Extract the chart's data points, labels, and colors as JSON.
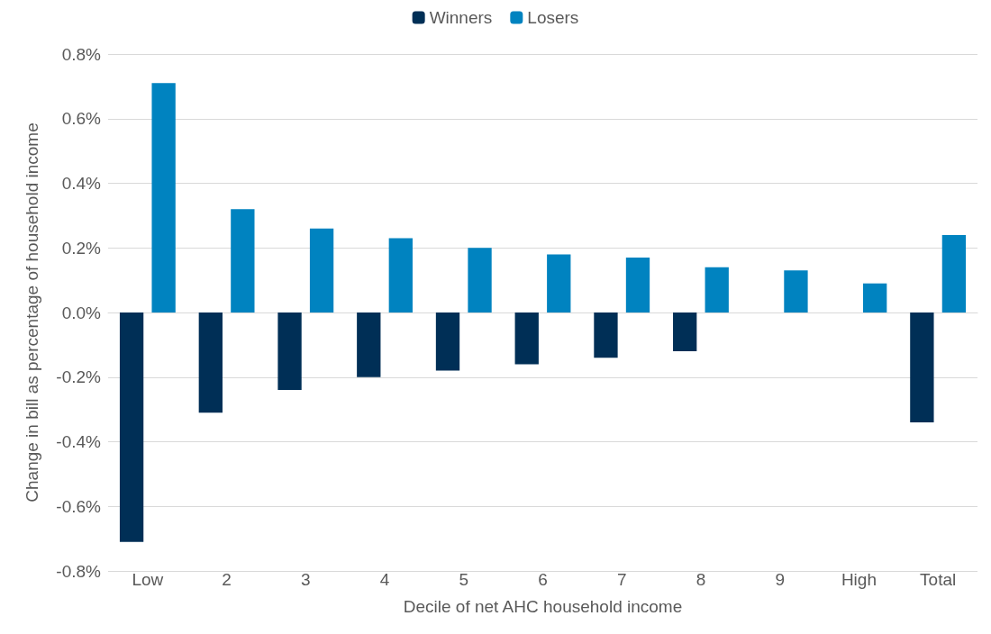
{
  "chart_data": {
    "type": "bar",
    "xlabel": "Decile of net AHC household income",
    "ylabel": "Change in bill as percentage of household income",
    "categories": [
      "Low",
      "2",
      "3",
      "4",
      "5",
      "6",
      "7",
      "8",
      "9",
      "High",
      "Total"
    ],
    "series": [
      {
        "name": "Winners",
        "color": "#002f56",
        "values": [
          -0.71,
          -0.31,
          -0.24,
          -0.2,
          -0.18,
          -0.16,
          -0.14,
          -0.12,
          null,
          null,
          -0.34
        ]
      },
      {
        "name": "Losers",
        "color": "#0083c0",
        "values": [
          0.71,
          0.32,
          0.26,
          0.23,
          0.2,
          0.18,
          0.17,
          0.14,
          0.13,
          0.09,
          0.24
        ]
      }
    ],
    "ylim": [
      -0.8,
      0.8
    ],
    "yticks": [
      {
        "value": -0.8,
        "label": "-0.8%"
      },
      {
        "value": -0.6,
        "label": "-0.6%"
      },
      {
        "value": -0.4,
        "label": "-0.4%"
      },
      {
        "value": -0.2,
        "label": "-0.2%"
      },
      {
        "value": 0,
        "label": "0.0%"
      },
      {
        "value": 0.2,
        "label": "0.2%"
      },
      {
        "value": 0.4,
        "label": "0.4%"
      },
      {
        "value": 0.6,
        "label": "0.6%"
      },
      {
        "value": 0.8,
        "label": "0.8%"
      }
    ],
    "grid": "y",
    "legend": "top"
  }
}
